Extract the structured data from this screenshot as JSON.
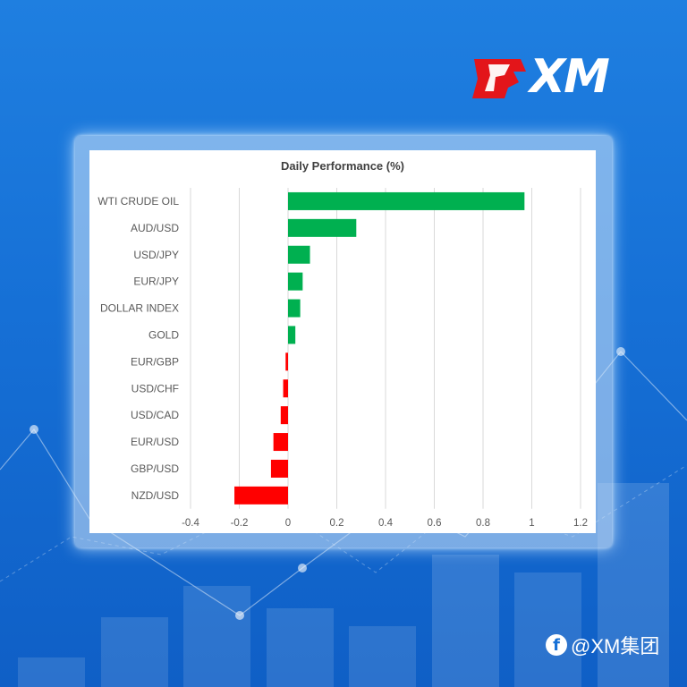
{
  "brand": {
    "logo_text": "XM",
    "accent_red": "#e3151a"
  },
  "footer": {
    "handle": "@XM集团",
    "icon": "facebook-icon"
  },
  "chart_data": {
    "type": "bar",
    "orientation": "horizontal",
    "title": "Daily Performance (%)",
    "categories": [
      "WTI CRUDE OIL",
      "AUD/USD",
      "USD/JPY",
      "EUR/JPY",
      "DOLLAR INDEX",
      "GOLD",
      "EUR/GBP",
      "USD/CHF",
      "USD/CAD",
      "EUR/USD",
      "GBP/USD",
      "NZD/USD"
    ],
    "values": [
      0.97,
      0.28,
      0.09,
      0.06,
      0.05,
      0.03,
      -0.01,
      -0.02,
      -0.03,
      -0.06,
      -0.07,
      -0.22
    ],
    "xlim": [
      -0.4,
      1.2
    ],
    "xticks": [
      -0.4,
      -0.2,
      0,
      0.2,
      0.4,
      0.6,
      0.8,
      1,
      1.2
    ],
    "xtick_labels": [
      "-0.4",
      "-0.2",
      "0",
      "0.2",
      "0.4",
      "0.6",
      "0.8",
      "1",
      "1.2"
    ],
    "grid": "vertical",
    "colors": {
      "positive": "#00b050",
      "negative": "#ff0000"
    }
  }
}
